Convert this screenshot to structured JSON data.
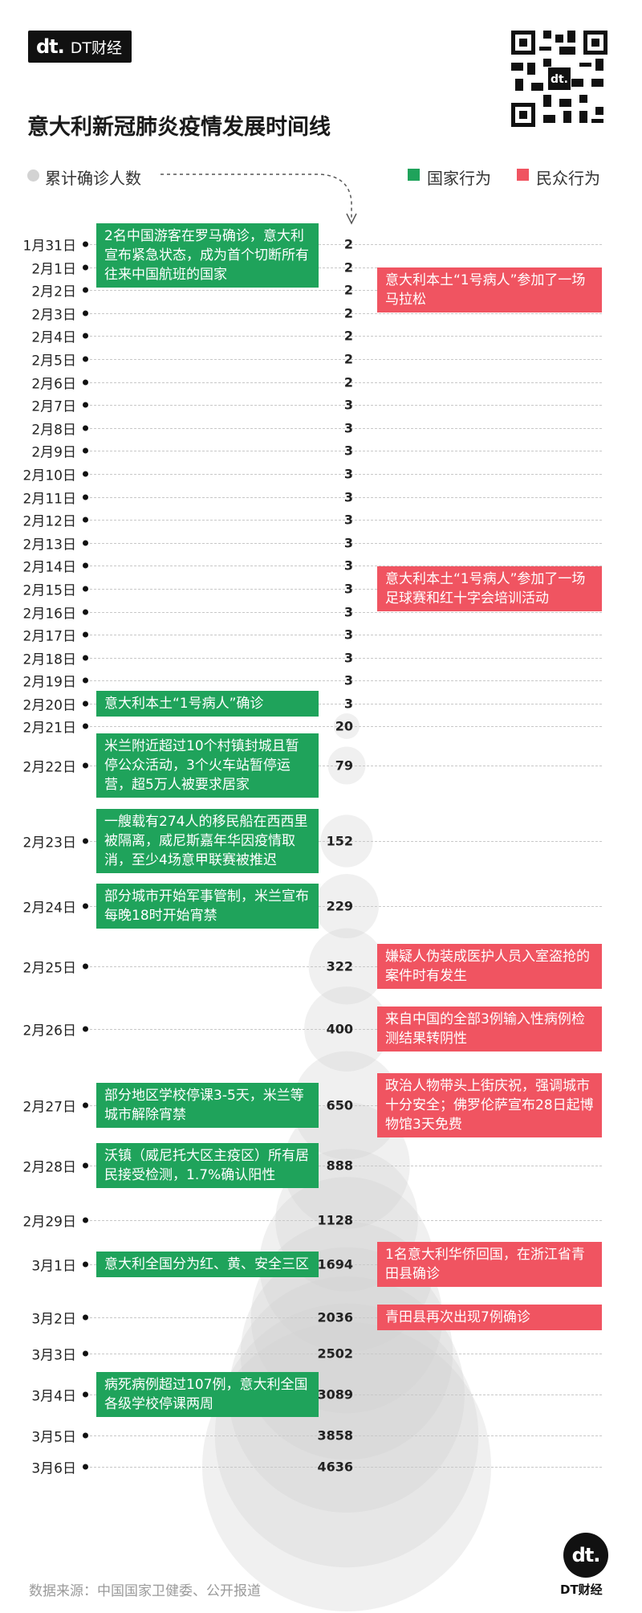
{
  "header": {
    "logo_mark": "dt.",
    "logo_text": "DT财经",
    "title": "意大利新冠肺炎疫情发展时间线"
  },
  "legend": {
    "cumulative": "累计确诊人数",
    "national": "国家行为",
    "public": "民众行为"
  },
  "colors": {
    "national": "#1fa35b",
    "public": "#f05461",
    "bubble": "#cfcfcf"
  },
  "chart_data": {
    "type": "bubble-timeline",
    "title": "意大利新冠肺炎疫情发展时间线",
    "series": [
      {
        "name": "累计确诊人数",
        "points": [
          {
            "date": "1月31日",
            "value": 2
          },
          {
            "date": "2月1日",
            "value": 2
          },
          {
            "date": "2月2日",
            "value": 2
          },
          {
            "date": "2月3日",
            "value": 2
          },
          {
            "date": "2月4日",
            "value": 2
          },
          {
            "date": "2月5日",
            "value": 2
          },
          {
            "date": "2月6日",
            "value": 2
          },
          {
            "date": "2月7日",
            "value": 3
          },
          {
            "date": "2月8日",
            "value": 3
          },
          {
            "date": "2月9日",
            "value": 3
          },
          {
            "date": "2月10日",
            "value": 3
          },
          {
            "date": "2月11日",
            "value": 3
          },
          {
            "date": "2月12日",
            "value": 3
          },
          {
            "date": "2月13日",
            "value": 3
          },
          {
            "date": "2月14日",
            "value": 3
          },
          {
            "date": "2月15日",
            "value": 3
          },
          {
            "date": "2月16日",
            "value": 3
          },
          {
            "date": "2月17日",
            "value": 3
          },
          {
            "date": "2月18日",
            "value": 3
          },
          {
            "date": "2月19日",
            "value": 3
          },
          {
            "date": "2月20日",
            "value": 3
          },
          {
            "date": "2月21日",
            "value": 20
          },
          {
            "date": "2月22日",
            "value": 79
          },
          {
            "date": "2月23日",
            "value": 152
          },
          {
            "date": "2月24日",
            "value": 229
          },
          {
            "date": "2月25日",
            "value": 322
          },
          {
            "date": "2月26日",
            "value": 400
          },
          {
            "date": "2月27日",
            "value": 650
          },
          {
            "date": "2月28日",
            "value": 888
          },
          {
            "date": "2月29日",
            "value": 1128
          },
          {
            "date": "3月1日",
            "value": 1694
          },
          {
            "date": "3月2日",
            "value": 2036
          },
          {
            "date": "3月3日",
            "value": 2502
          },
          {
            "date": "3月4日",
            "value": 3089
          },
          {
            "date": "3月5日",
            "value": 3858
          },
          {
            "date": "3月6日",
            "value": 4636
          }
        ]
      }
    ],
    "annotations": {
      "national": [
        {
          "dates": [
            "1月31日",
            "2月1日"
          ],
          "text": "2名中国游客在罗马确诊，意大利宣布紧急状态，成为首个切断所有往来中国航班的国家"
        },
        {
          "dates": [
            "2月20日"
          ],
          "text": "意大利本土“1号病人”确诊"
        },
        {
          "dates": [
            "2月22日"
          ],
          "text": "米兰附近超过10个村镇封城且暂停公众活动，3个火车站暂停运营，超5万人被要求居家"
        },
        {
          "dates": [
            "2月23日"
          ],
          "text": "一艘载有274人的移民船在西西里被隔离，威尼斯嘉年华因疫情取消，至少4场意甲联赛被推迟"
        },
        {
          "dates": [
            "2月24日"
          ],
          "text": "部分城市开始军事管制，米兰宣布每晚18时开始宵禁"
        },
        {
          "dates": [
            "2月27日"
          ],
          "text": "部分地区学校停课3-5天，米兰等城市解除宵禁"
        },
        {
          "dates": [
            "2月28日"
          ],
          "text": "沃镇（威尼托大区主疫区）所有居民接受检测，1.7%确认阳性"
        },
        {
          "dates": [
            "3月1日"
          ],
          "text": "意大利全国分为红、黄、安全三区"
        },
        {
          "dates": [
            "3月4日"
          ],
          "text": "病死病例超过107例，意大利全国各级学校停课两周"
        }
      ],
      "public": [
        {
          "dates": [
            "2月2日"
          ],
          "text": "意大利本土“1号病人”参加了一场马拉松"
        },
        {
          "dates": [
            "2月15日"
          ],
          "text": "意大利本土“1号病人”参加了一场足球赛和红十字会培训活动"
        },
        {
          "dates": [
            "2月25日"
          ],
          "text": "嫌疑人伪装成医护人员入室盗抢的案件时有发生"
        },
        {
          "dates": [
            "2月26日"
          ],
          "text": "来自中国的全部3例输入性病例检测结果转阴性"
        },
        {
          "dates": [
            "2月27日"
          ],
          "text": "政治人物带头上街庆祝，强调城市十分安全；佛罗伦萨宣布28日起博物馆3天免费"
        },
        {
          "dates": [
            "3月1日"
          ],
          "text": "1名意大利华侨回国，在浙江省青田县确诊"
        },
        {
          "dates": [
            "3月2日"
          ],
          "text": "青田县再次出现7例确诊"
        }
      ]
    }
  },
  "footer": {
    "source": "数据来源：中国国家卫健委、公开报道",
    "brand_mark": "dt.",
    "brand_text": "DT财经"
  }
}
